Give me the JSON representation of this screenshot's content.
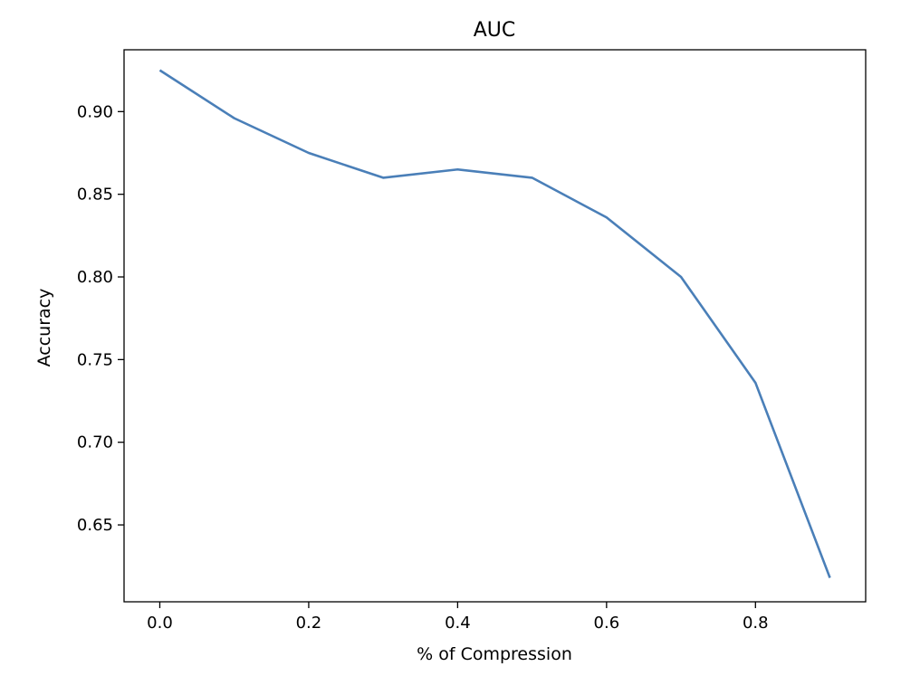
{
  "chart_data": {
    "type": "line",
    "title": "AUC",
    "xlabel": "% of Compression",
    "ylabel": "Accuracy",
    "xlim": [
      -0.048,
      0.948
    ],
    "ylim": [
      0.6035,
      0.9374
    ],
    "x_ticks": [
      0.0,
      0.2,
      0.4,
      0.6,
      0.8
    ],
    "x_tick_labels": [
      "0.0",
      "0.2",
      "0.4",
      "0.6",
      "0.8"
    ],
    "y_ticks": [
      0.65,
      0.7,
      0.75,
      0.8,
      0.85,
      0.9
    ],
    "y_tick_labels": [
      "0.65",
      "0.70",
      "0.75",
      "0.80",
      "0.85",
      "0.90"
    ],
    "grid": false,
    "series": [
      {
        "color": "#4a7fb8",
        "x": [
          0.0,
          0.1,
          0.2,
          0.3,
          0.4,
          0.5,
          0.6,
          0.7,
          0.8,
          0.9
        ],
        "y": [
          0.925,
          0.896,
          0.875,
          0.86,
          0.865,
          0.86,
          0.836,
          0.8,
          0.736,
          0.618
        ]
      }
    ]
  }
}
